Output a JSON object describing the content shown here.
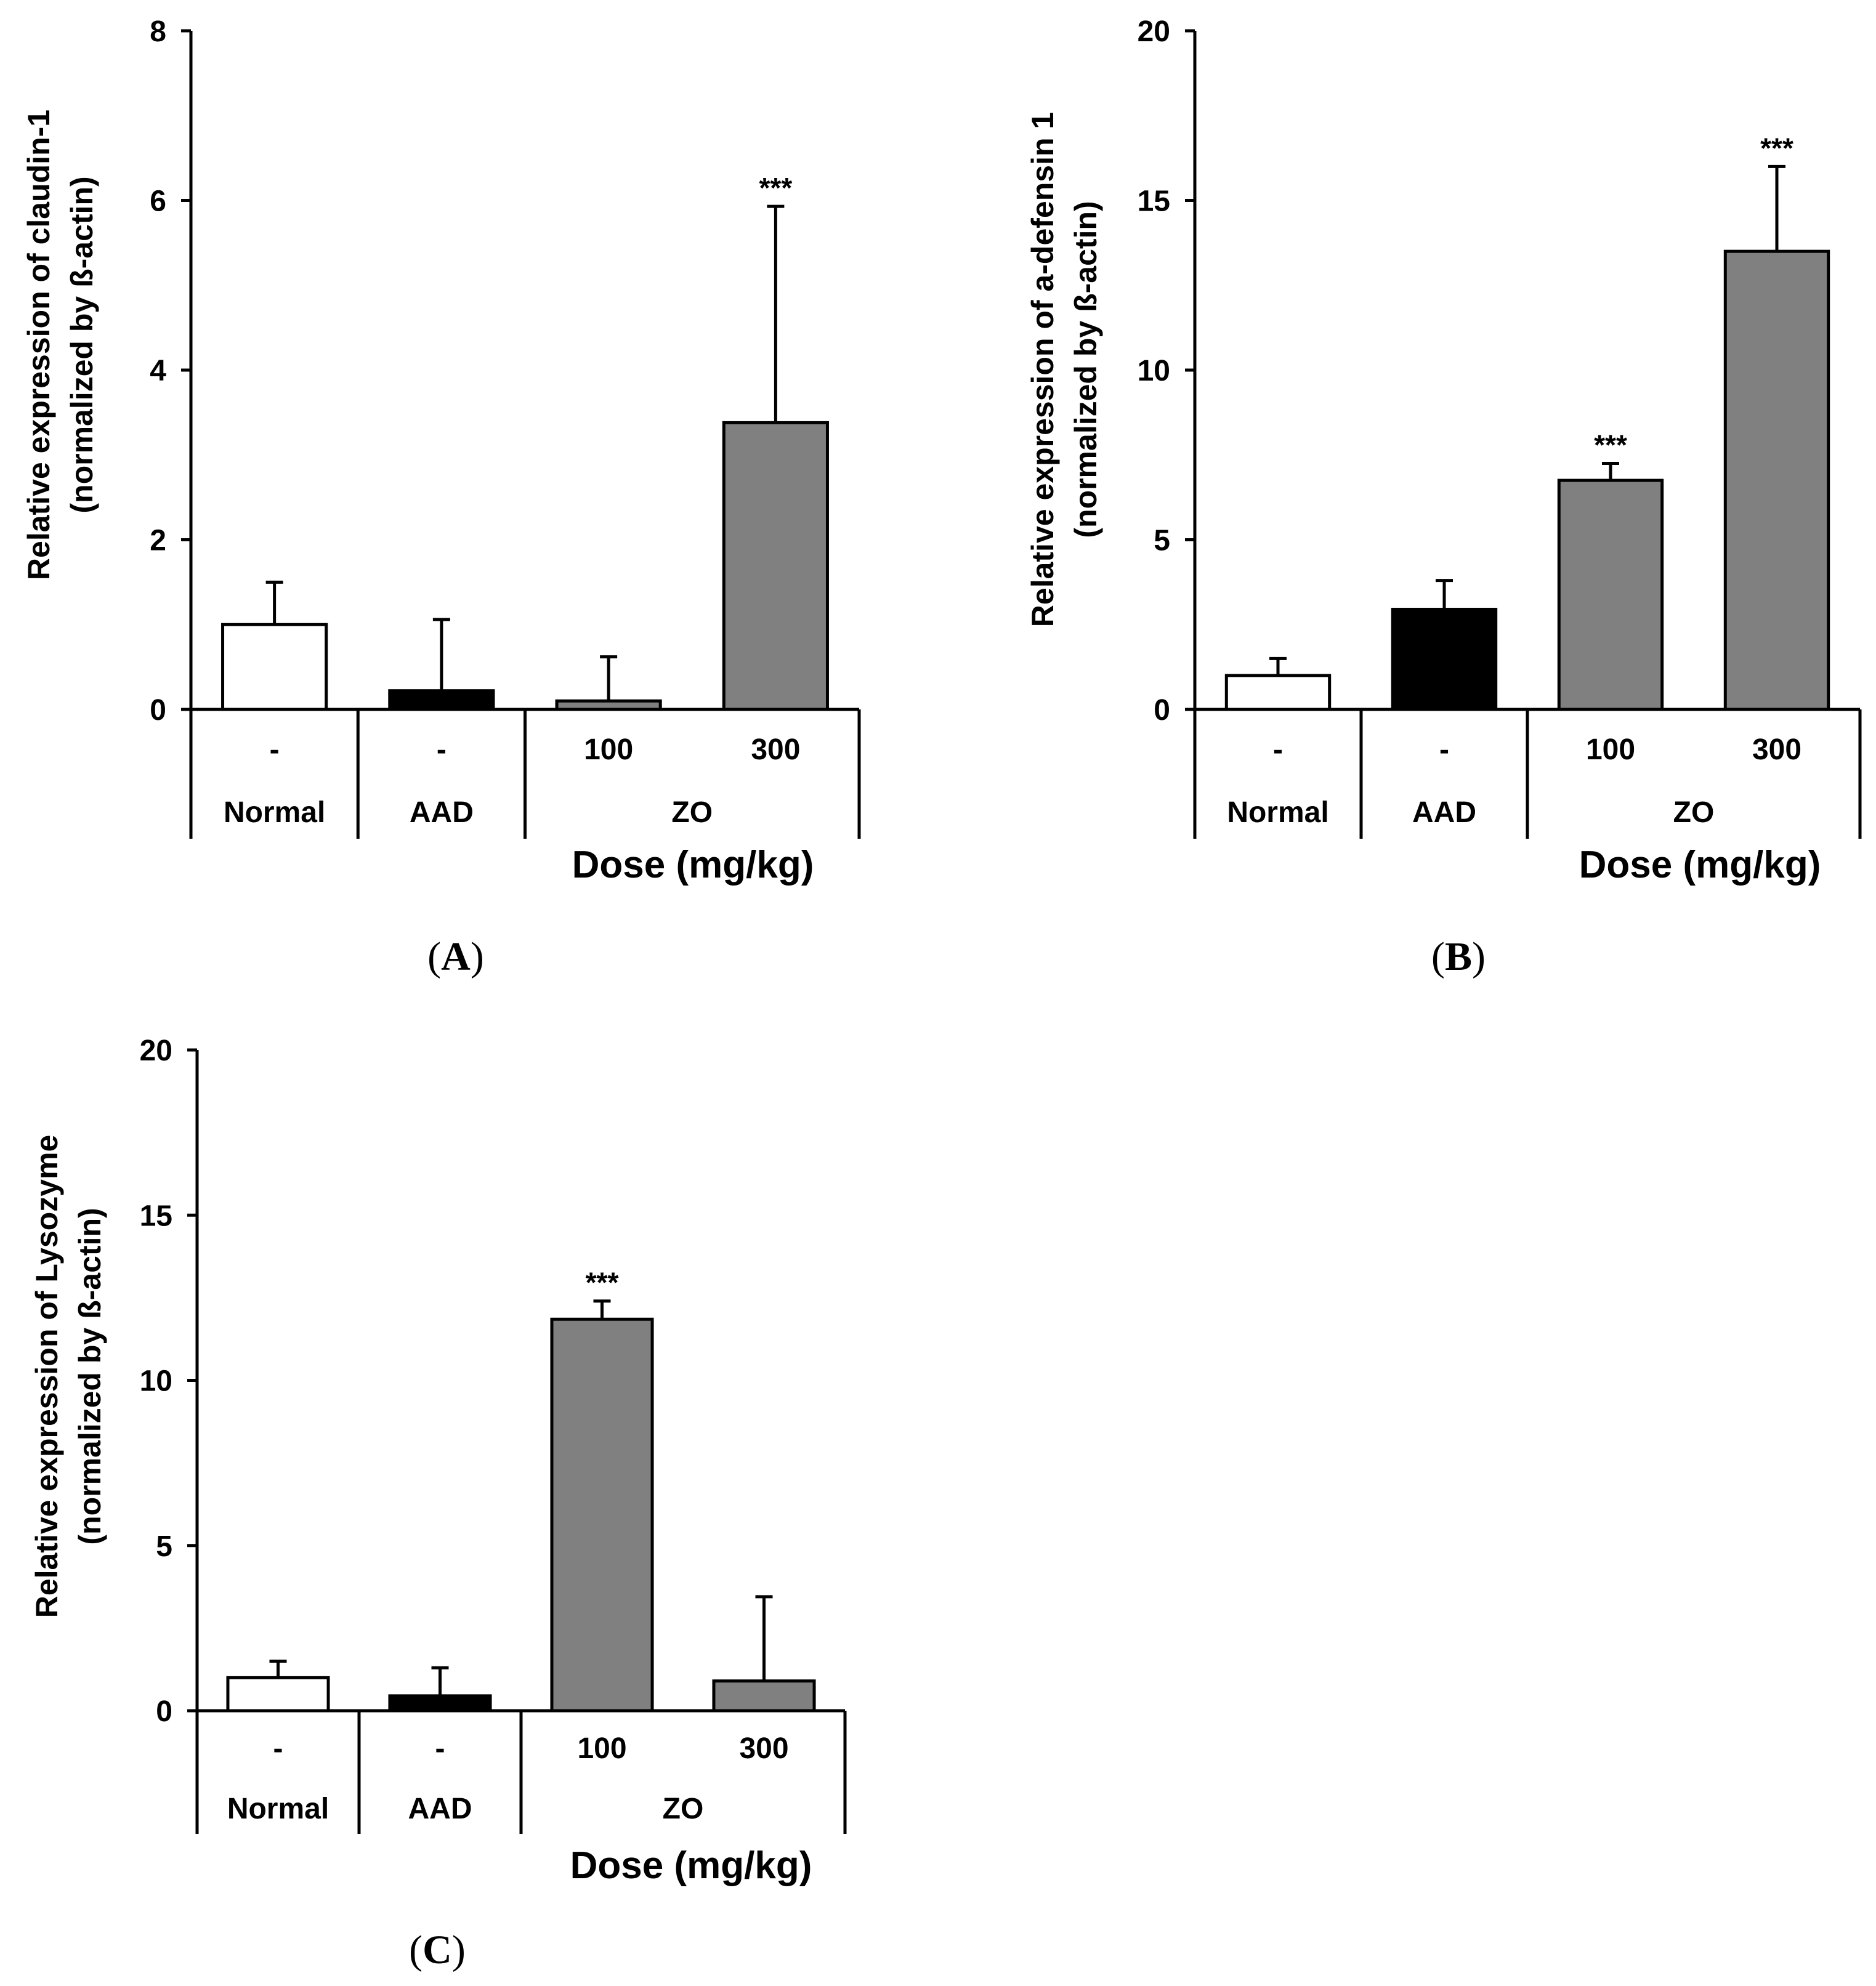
{
  "chart_data": [
    {
      "type": "bar",
      "panel": "A",
      "ylabel_line1": "Relative expression of claudin-1",
      "ylabel_line2": "(normalized by ß-actin)",
      "xlabel": "Dose (mg/kg)",
      "ylim": [
        0,
        8
      ],
      "y_ticks": [
        "0",
        "2",
        "4",
        "6",
        "8"
      ],
      "y_tick_values": [
        0,
        2,
        4,
        6,
        8
      ],
      "doses": [
        "-",
        "-",
        "100",
        "300"
      ],
      "groups": [
        {
          "label": "Normal",
          "span": 1
        },
        {
          "label": "AAD",
          "span": 1
        },
        {
          "label": "ZO",
          "span": 2
        }
      ],
      "values": [
        1.0,
        0.22,
        0.1,
        3.38
      ],
      "errors": [
        0.5,
        0.84,
        0.52,
        2.55
      ],
      "significance": [
        "",
        "",
        "",
        "***"
      ],
      "colors": [
        "#ffffff",
        "#000000",
        "#808080",
        "#808080"
      ]
    },
    {
      "type": "bar",
      "panel": "B",
      "ylabel_line1": "Relative expression of a-defensin 1",
      "ylabel_line2": "(normalized by ß-actin)",
      "xlabel": "Dose (mg/kg)",
      "ylim": [
        0,
        20
      ],
      "y_ticks": [
        "0",
        "5",
        "10",
        "15",
        "20"
      ],
      "y_tick_values": [
        0,
        5,
        10,
        15,
        20
      ],
      "doses": [
        "-",
        "-",
        "100",
        "300"
      ],
      "groups": [
        {
          "label": "Normal",
          "span": 1
        },
        {
          "label": "AAD",
          "span": 1
        },
        {
          "label": "ZO",
          "span": 2
        }
      ],
      "values": [
        1.0,
        2.95,
        6.75,
        13.5
      ],
      "errors": [
        0.5,
        0.85,
        0.5,
        2.5
      ],
      "significance": [
        "",
        "",
        "***",
        "***"
      ],
      "colors": [
        "#ffffff",
        "#000000",
        "#808080",
        "#808080"
      ]
    },
    {
      "type": "bar",
      "panel": "C",
      "ylabel_line1": "Relative expression of Lysozyme",
      "ylabel_line2": "(normalized by ß-actin)",
      "xlabel": "Dose (mg/kg)",
      "ylim": [
        0,
        20
      ],
      "y_ticks": [
        "0",
        "5",
        "10",
        "15",
        "20"
      ],
      "y_tick_values": [
        0,
        5,
        10,
        15,
        20
      ],
      "doses": [
        "-",
        "-",
        "100",
        "300"
      ],
      "groups": [
        {
          "label": "Normal",
          "span": 1
        },
        {
          "label": "AAD",
          "span": 1
        },
        {
          "label": "ZO",
          "span": 2
        }
      ],
      "values": [
        1.0,
        0.45,
        11.85,
        0.9
      ],
      "errors": [
        0.5,
        0.85,
        0.55,
        2.55
      ],
      "significance": [
        "",
        "",
        "***",
        ""
      ],
      "colors": [
        "#ffffff",
        "#000000",
        "#808080",
        "#808080"
      ]
    }
  ]
}
